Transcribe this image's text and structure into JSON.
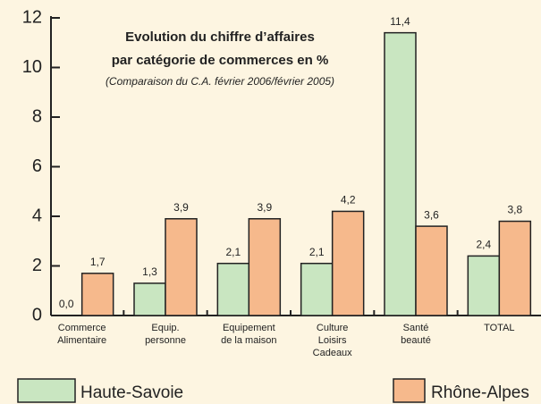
{
  "chart_data": {
    "type": "bar",
    "title": "Evolution du chiffre d’affaires",
    "subtitle": "par catégorie de commerces en %",
    "annotation": "(Comparaison du C.A. février 2006/février 2005)",
    "categories": [
      "Commerce\nAlimentaire",
      "Equip.\npersonne",
      "Equipement\nde la maison",
      "Culture\nLoisirs\nCadeaux",
      "Santé\nbeauté",
      "TOTAL"
    ],
    "series": [
      {
        "name": "Haute-Savoie",
        "color": "#c9e6c1",
        "values": [
          0.0,
          1.3,
          2.1,
          2.1,
          11.4,
          2.4
        ],
        "value_labels": [
          "0,0",
          "1,3",
          "2,1",
          "2,1",
          "11,4",
          "2,4"
        ]
      },
      {
        "name": "Rhône-Alpes",
        "color": "#f6b98c",
        "values": [
          1.7,
          3.9,
          3.9,
          4.2,
          3.6,
          3.8
        ],
        "value_labels": [
          "1,7",
          "3,9",
          "3,9",
          "4,2",
          "3,6",
          "3,8"
        ]
      }
    ],
    "ylim": [
      0,
      12
    ],
    "yticks": [
      0,
      2,
      4,
      6,
      8,
      10,
      12
    ]
  }
}
